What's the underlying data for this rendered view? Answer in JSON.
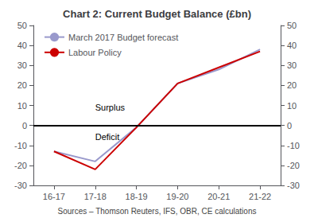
{
  "chart_data": {
    "type": "line",
    "title": "Chart 2: Current Budget Balance (£bn)",
    "categories": [
      "16-17",
      "17-18",
      "18-19",
      "19-20",
      "20-21",
      "21-22"
    ],
    "series": [
      {
        "name": "March 2017 Budget forecast",
        "color": "#9999cc",
        "values": [
          -13,
          -18,
          -1,
          21,
          28,
          38
        ]
      },
      {
        "name": "Labour Policy",
        "color": "#cc0000",
        "values": [
          -13,
          -22,
          -1,
          21,
          29,
          37
        ]
      }
    ],
    "ylim": [
      -30,
      50
    ],
    "yticks": [
      -30,
      -20,
      -10,
      0,
      10,
      20,
      30,
      40,
      50
    ],
    "y2lim": [
      -30,
      50
    ],
    "y2ticks": [
      -30,
      -20,
      -10,
      0,
      10,
      20,
      30,
      40,
      50
    ],
    "zero_line": {
      "y": 0,
      "color": "#000000"
    },
    "annotations": [
      {
        "text": "Surplus",
        "x": 0.9,
        "y": 7
      },
      {
        "text": "Deficit",
        "x": 0.9,
        "y": -8
      }
    ],
    "source": "Sources – Thomson Reuters, IFS, OBR, CE calculations",
    "legend": "upper left",
    "grid": false
  }
}
